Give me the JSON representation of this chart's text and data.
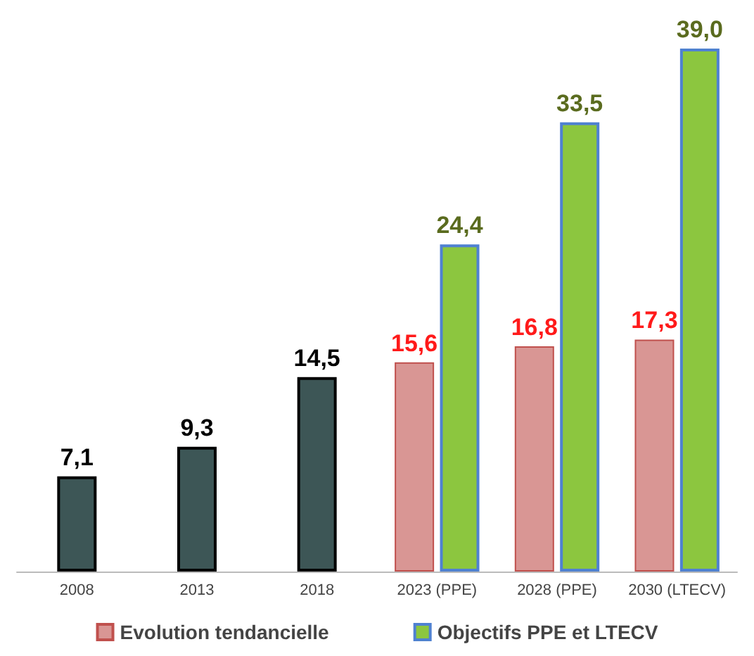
{
  "chart_data": {
    "type": "bar",
    "categories": [
      "2008",
      "2013",
      "2018",
      "2023 (PPE)",
      "2028 (PPE)",
      "2030 (LTECV)"
    ],
    "series": [
      {
        "color": "#3d5656",
        "values": [
          7.1,
          9.3,
          14.5,
          null,
          null,
          null
        ],
        "value_labels": [
          "7,1",
          "9,3",
          "14,5",
          null,
          null,
          null
        ]
      },
      {
        "name": "Evolution tendancielle",
        "color": "#d99694",
        "values": [
          null,
          null,
          null,
          15.6,
          16.8,
          17.3
        ],
        "value_labels": [
          null,
          null,
          null,
          "15,6",
          "16,8",
          "17,3"
        ]
      },
      {
        "name": "Objectifs PPE et LTECV",
        "color": "#8cc63f",
        "values": [
          null,
          null,
          null,
          24.4,
          33.5,
          39.0
        ],
        "value_labels": [
          null,
          null,
          null,
          "24,4",
          "33,5",
          "39,0"
        ]
      }
    ],
    "legend": "bottom"
  }
}
